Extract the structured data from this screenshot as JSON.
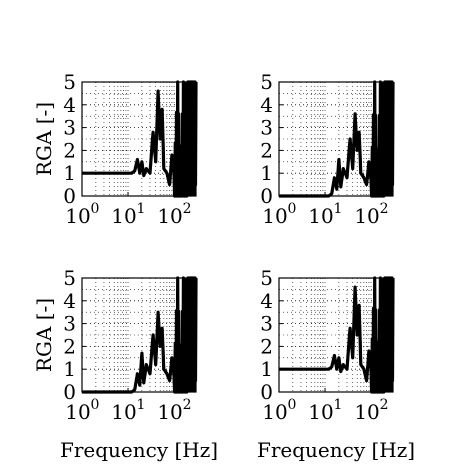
{
  "figure": {
    "xlabel": "Frequency [Hz]",
    "ylabel": "RGA [-]"
  },
  "chart_data": [
    {
      "type": "line",
      "panel": "top-left",
      "xscale": "log",
      "xlim": [
        1,
        300
      ],
      "ylim": [
        0,
        5
      ],
      "xticks": [
        1,
        10,
        100
      ],
      "xtick_labels": [
        "10",
        "10",
        "10"
      ],
      "xtick_exponents": [
        "0",
        "1",
        "2"
      ],
      "yticks": [
        0,
        1,
        2,
        3,
        4,
        5
      ],
      "ytick_labels": [
        "0",
        "1",
        "2",
        "3",
        "4",
        "5"
      ],
      "grid": true,
      "ylabel": "RGA [-]",
      "xlabel": "",
      "series": [
        {
          "x": [
            1,
            5,
            12,
            14,
            16,
            18,
            20,
            22,
            25,
            30,
            35,
            40,
            45,
            50,
            55,
            60,
            70,
            80,
            90,
            100,
            120,
            140,
            160,
            180,
            200,
            230,
            260,
            300
          ],
          "y": [
            1.0,
            1.0,
            1.0,
            1.1,
            1.6,
            1.0,
            1.5,
            0.9,
            1.2,
            1.0,
            2.8,
            1.5,
            4.6,
            2.5,
            3.8,
            1.2,
            1.0,
            0.5,
            1.8,
            1.0,
            5.0,
            0.8,
            5.0,
            3.0,
            5.0,
            5.0,
            5.0,
            5.0
          ]
        }
      ]
    },
    {
      "type": "line",
      "panel": "top-right",
      "xscale": "log",
      "xlim": [
        1,
        300
      ],
      "ylim": [
        0,
        5
      ],
      "xticks": [
        1,
        10,
        100
      ],
      "xtick_labels": [
        "10",
        "10",
        "10"
      ],
      "xtick_exponents": [
        "0",
        "1",
        "2"
      ],
      "yticks": [
        0,
        1,
        2,
        3,
        4,
        5
      ],
      "ytick_labels": [
        "0",
        "1",
        "2",
        "3",
        "4",
        "5"
      ],
      "grid": true,
      "ylabel": "",
      "xlabel": "",
      "series": [
        {
          "x": [
            1,
            5,
            12,
            14,
            16,
            18,
            20,
            22,
            25,
            30,
            35,
            40,
            45,
            50,
            55,
            60,
            70,
            80,
            90,
            100,
            120,
            140,
            160,
            180,
            200,
            230,
            260,
            300
          ],
          "y": [
            0.0,
            0.0,
            0.0,
            0.1,
            0.8,
            0.3,
            1.6,
            0.4,
            1.2,
            0.8,
            2.5,
            1.2,
            3.6,
            2.0,
            2.8,
            1.0,
            0.8,
            0.5,
            1.5,
            0.7,
            5.0,
            0.6,
            5.0,
            2.5,
            5.0,
            5.0,
            5.0,
            5.0
          ]
        }
      ]
    },
    {
      "type": "line",
      "panel": "bottom-left",
      "xscale": "log",
      "xlim": [
        1,
        300
      ],
      "ylim": [
        0,
        5
      ],
      "xticks": [
        1,
        10,
        100
      ],
      "xtick_labels": [
        "10",
        "10",
        "10"
      ],
      "xtick_exponents": [
        "0",
        "1",
        "2"
      ],
      "yticks": [
        0,
        1,
        2,
        3,
        4,
        5
      ],
      "ytick_labels": [
        "0",
        "1",
        "2",
        "3",
        "4",
        "5"
      ],
      "grid": true,
      "ylabel": "RGA [-]",
      "xlabel": "Frequency [Hz]",
      "series": [
        {
          "x": [
            1,
            5,
            12,
            14,
            16,
            18,
            20,
            22,
            25,
            30,
            35,
            40,
            45,
            50,
            55,
            60,
            70,
            80,
            90,
            100,
            120,
            140,
            160,
            180,
            200,
            230,
            260,
            300
          ],
          "y": [
            0.0,
            0.0,
            0.0,
            0.1,
            0.8,
            0.3,
            1.7,
            0.4,
            1.2,
            0.8,
            2.5,
            1.2,
            3.5,
            2.0,
            2.8,
            1.0,
            0.8,
            0.5,
            1.5,
            0.7,
            5.0,
            0.6,
            5.0,
            2.5,
            5.0,
            5.0,
            5.0,
            5.0
          ]
        }
      ]
    },
    {
      "type": "line",
      "panel": "bottom-right",
      "xscale": "log",
      "xlim": [
        1,
        300
      ],
      "ylim": [
        0,
        5
      ],
      "xticks": [
        1,
        10,
        100
      ],
      "xtick_labels": [
        "10",
        "10",
        "10"
      ],
      "xtick_exponents": [
        "0",
        "1",
        "2"
      ],
      "yticks": [
        0,
        1,
        2,
        3,
        4,
        5
      ],
      "ytick_labels": [
        "0",
        "1",
        "2",
        "3",
        "4",
        "5"
      ],
      "grid": true,
      "ylabel": "",
      "xlabel": "Frequency [Hz]",
      "series": [
        {
          "x": [
            1,
            5,
            12,
            14,
            16,
            18,
            20,
            22,
            25,
            30,
            35,
            40,
            45,
            50,
            55,
            60,
            70,
            80,
            90,
            100,
            120,
            140,
            160,
            180,
            200,
            230,
            260,
            300
          ],
          "y": [
            1.0,
            1.0,
            1.0,
            1.1,
            1.6,
            1.0,
            1.5,
            0.9,
            1.2,
            1.0,
            2.8,
            1.5,
            4.6,
            2.5,
            3.8,
            1.2,
            1.0,
            0.5,
            1.8,
            1.0,
            5.0,
            0.8,
            5.0,
            3.0,
            5.0,
            5.0,
            5.0,
            5.0
          ]
        }
      ]
    }
  ]
}
